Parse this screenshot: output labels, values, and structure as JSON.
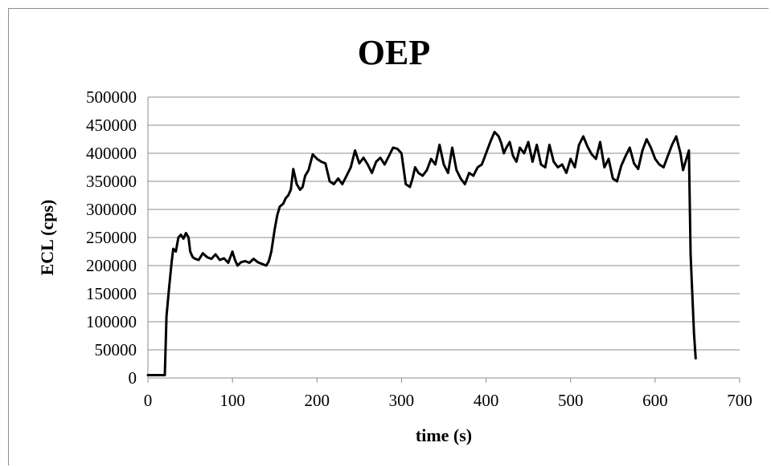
{
  "chart_data": {
    "type": "line",
    "title": "OEP",
    "xlabel": "time (s)",
    "ylabel": "ECL (cps)",
    "xlim": [
      0,
      700
    ],
    "ylim": [
      0,
      500000
    ],
    "x_ticks": [
      "0",
      "100",
      "200",
      "300",
      "400",
      "500",
      "600",
      "700"
    ],
    "y_ticks": [
      "0",
      "50000",
      "100000",
      "150000",
      "200000",
      "250000",
      "300000",
      "350000",
      "400000",
      "450000",
      "500000"
    ],
    "grid": "horizontal",
    "legend": "none",
    "line_color": "#000000",
    "series": [
      {
        "x": [
          0,
          20,
          22,
          25,
          28,
          30,
          33,
          36,
          39,
          42,
          45,
          48,
          50,
          53,
          56,
          60,
          65,
          70,
          75,
          80,
          85,
          90,
          95,
          100,
          103,
          106,
          110,
          115,
          120,
          125,
          130,
          135,
          140,
          143,
          146,
          150,
          153,
          156,
          160,
          163,
          166,
          169,
          172,
          176,
          180,
          183,
          186,
          190,
          195,
          200,
          205,
          210,
          215,
          220,
          225,
          230,
          235,
          240,
          245,
          250,
          255,
          260,
          265,
          270,
          275,
          280,
          285,
          290,
          295,
          300,
          305,
          310,
          313,
          316,
          320,
          325,
          330,
          335,
          340,
          345,
          350,
          355,
          360,
          365,
          370,
          375,
          380,
          385,
          390,
          395,
          400,
          405,
          410,
          415,
          418,
          421,
          424,
          428,
          432,
          436,
          440,
          445,
          450,
          455,
          460,
          465,
          470,
          475,
          480,
          485,
          490,
          495,
          500,
          505,
          510,
          515,
          520,
          525,
          530,
          535,
          540,
          545,
          550,
          555,
          560,
          565,
          570,
          575,
          580,
          585,
          590,
          595,
          600,
          605,
          610,
          615,
          620,
          625,
          630,
          633,
          636,
          640,
          642,
          644,
          646,
          648
        ],
        "y": [
          5000,
          5000,
          110000,
          160000,
          205000,
          230000,
          225000,
          250000,
          255000,
          248000,
          258000,
          250000,
          225000,
          215000,
          212000,
          210000,
          222000,
          215000,
          212000,
          220000,
          210000,
          213000,
          205000,
          225000,
          210000,
          200000,
          206000,
          208000,
          205000,
          212000,
          206000,
          203000,
          200000,
          208000,
          225000,
          265000,
          290000,
          305000,
          310000,
          320000,
          325000,
          335000,
          372000,
          345000,
          335000,
          340000,
          360000,
          370000,
          398000,
          390000,
          385000,
          382000,
          350000,
          345000,
          355000,
          345000,
          360000,
          375000,
          405000,
          382000,
          392000,
          380000,
          365000,
          385000,
          392000,
          380000,
          395000,
          410000,
          408000,
          400000,
          345000,
          340000,
          355000,
          375000,
          365000,
          360000,
          370000,
          390000,
          380000,
          415000,
          380000,
          365000,
          410000,
          370000,
          355000,
          345000,
          365000,
          360000,
          375000,
          380000,
          400000,
          420000,
          438000,
          430000,
          418000,
          400000,
          410000,
          420000,
          395000,
          385000,
          410000,
          400000,
          420000,
          385000,
          415000,
          380000,
          375000,
          415000,
          385000,
          375000,
          380000,
          365000,
          390000,
          375000,
          415000,
          430000,
          412000,
          398000,
          390000,
          420000,
          375000,
          390000,
          355000,
          350000,
          378000,
          395000,
          410000,
          382000,
          372000,
          405000,
          425000,
          410000,
          390000,
          380000,
          375000,
          395000,
          415000,
          430000,
          400000,
          370000,
          385000,
          405000,
          220000,
          150000,
          80000,
          35000
        ]
      }
    ]
  }
}
